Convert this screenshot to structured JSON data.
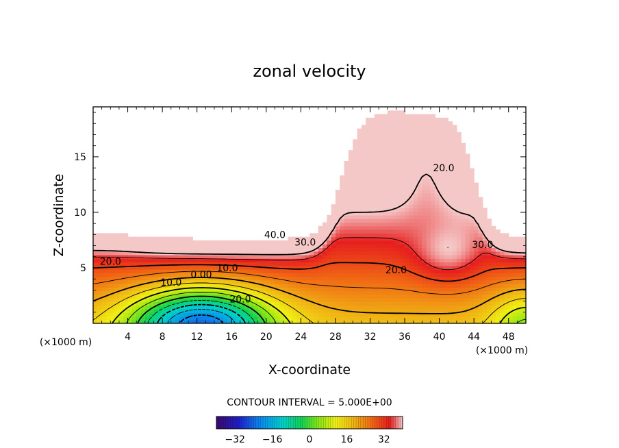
{
  "chart_data": {
    "type": "heatmap",
    "title": "zonal velocity",
    "xlabel": "X-coordinate",
    "ylabel": "Z-coordinate",
    "x_unit": "(×1000 m)",
    "xlim": [
      0,
      50
    ],
    "ylim": [
      0,
      19.5
    ],
    "x_ticks": [
      4,
      8,
      12,
      16,
      20,
      24,
      28,
      32,
      36,
      40,
      44,
      48
    ],
    "y_ticks": [
      5,
      10,
      15
    ],
    "contour_interval_label": "CONTOUR INTERVAL = 5.000E+00",
    "contour_labels": [
      {
        "text": "40.0",
        "x": 21,
        "z": 8.0
      },
      {
        "text": "30.0",
        "x": 24.5,
        "z": 7.3
      },
      {
        "text": "20.0",
        "x": 2,
        "z": 5.6
      },
      {
        "text": "10.0",
        "x": 15.5,
        "z": 5.0
      },
      {
        "text": "0.00",
        "x": 12.5,
        "z": 4.4
      },
      {
        "text": "10.0",
        "x": 9,
        "z": 3.7
      },
      {
        "text": "20.0",
        "x": 17,
        "z": 2.2
      },
      {
        "text": "20.0",
        "x": 35,
        "z": 4.8
      },
      {
        "text": "20.0",
        "x": 40.5,
        "z": 14.0
      },
      {
        "text": "30.0",
        "x": 45,
        "z": 7.1
      }
    ],
    "colorbar": {
      "range": [
        -40,
        40
      ],
      "ticks": [
        -32,
        -16,
        0,
        16,
        32
      ]
    }
  }
}
